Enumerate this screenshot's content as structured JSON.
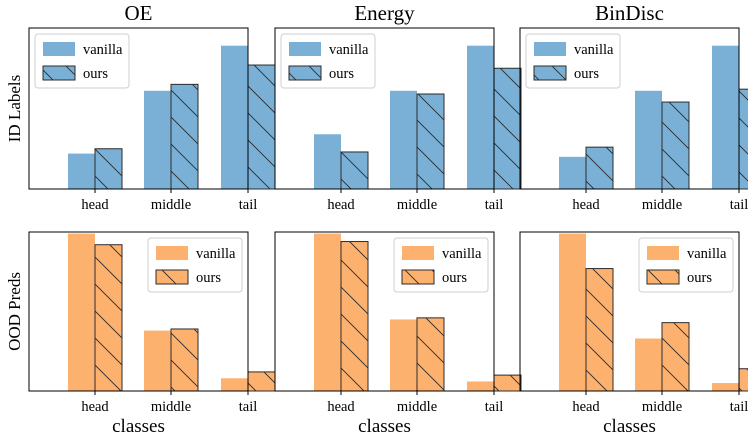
{
  "colors": {
    "blue": "#7AB0D6",
    "orange": "#FDB16F",
    "edge": "#2b2b2b"
  },
  "chart_data": [
    {
      "type": "bar",
      "title": "OE",
      "ylabel": "ID Labels",
      "xlabel": "",
      "categories": [
        "head",
        "middle",
        "tail"
      ],
      "ylim": [
        0,
        100
      ],
      "legend": "top-left",
      "grid": false,
      "series": [
        {
          "name": "vanilla",
          "values": [
            22,
            61,
            89
          ],
          "style": "solid",
          "color": "#7AB0D6"
        },
        {
          "name": "ours",
          "values": [
            25,
            65,
            77
          ],
          "style": "hatched",
          "color": "#7AB0D6"
        }
      ]
    },
    {
      "type": "bar",
      "title": "Energy",
      "ylabel": "",
      "xlabel": "",
      "categories": [
        "head",
        "middle",
        "tail"
      ],
      "ylim": [
        0,
        100
      ],
      "legend": "top-left",
      "grid": false,
      "series": [
        {
          "name": "vanilla",
          "values": [
            34,
            61,
            89
          ],
          "style": "solid",
          "color": "#7AB0D6"
        },
        {
          "name": "ours",
          "values": [
            23,
            59,
            75
          ],
          "style": "hatched",
          "color": "#7AB0D6"
        }
      ]
    },
    {
      "type": "bar",
      "title": "BinDisc",
      "ylabel": "",
      "xlabel": "",
      "categories": [
        "head",
        "middle",
        "tail"
      ],
      "ylim": [
        0,
        100
      ],
      "legend": "top-left",
      "grid": false,
      "series": [
        {
          "name": "vanilla",
          "values": [
            20,
            61,
            89
          ],
          "style": "solid",
          "color": "#7AB0D6"
        },
        {
          "name": "ours",
          "values": [
            26,
            54,
            62
          ],
          "style": "hatched",
          "color": "#7AB0D6"
        }
      ]
    },
    {
      "type": "bar",
      "title": "",
      "ylabel": "OOD Preds",
      "xlabel": "classes",
      "categories": [
        "head",
        "middle",
        "tail"
      ],
      "ylim": [
        0,
        100
      ],
      "legend": "top-right",
      "grid": false,
      "series": [
        {
          "name": "vanilla",
          "values": [
            99,
            38,
            8
          ],
          "style": "solid",
          "color": "#FDB16F"
        },
        {
          "name": "ours",
          "values": [
            92,
            39,
            12
          ],
          "style": "hatched",
          "color": "#FDB16F"
        }
      ]
    },
    {
      "type": "bar",
      "title": "",
      "ylabel": "",
      "xlabel": "classes",
      "categories": [
        "head",
        "middle",
        "tail"
      ],
      "ylim": [
        0,
        100
      ],
      "legend": "top-right",
      "grid": false,
      "series": [
        {
          "name": "vanilla",
          "values": [
            99,
            45,
            6
          ],
          "style": "solid",
          "color": "#FDB16F"
        },
        {
          "name": "ours",
          "values": [
            94,
            46,
            10
          ],
          "style": "hatched",
          "color": "#FDB16F"
        }
      ]
    },
    {
      "type": "bar",
      "title": "",
      "ylabel": "",
      "xlabel": "classes",
      "categories": [
        "head",
        "middle",
        "tail"
      ],
      "ylim": [
        0,
        100
      ],
      "legend": "top-right",
      "grid": false,
      "series": [
        {
          "name": "vanilla",
          "values": [
            99,
            33,
            5
          ],
          "style": "solid",
          "color": "#FDB16F"
        },
        {
          "name": "ours",
          "values": [
            77,
            43,
            14
          ],
          "style": "hatched",
          "color": "#FDB16F"
        }
      ]
    }
  ]
}
